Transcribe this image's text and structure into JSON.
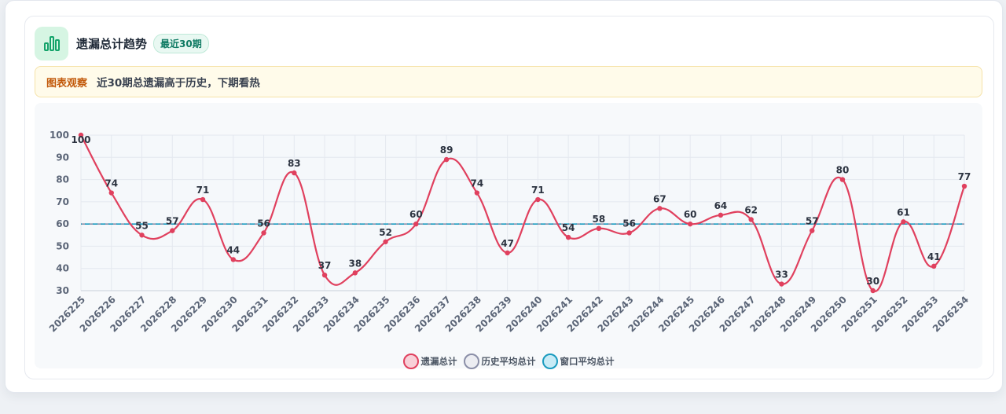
{
  "header": {
    "title": "遗漏总计趋势",
    "badge": "最近30期",
    "icon": "bar-chart-icon"
  },
  "insight": {
    "tag": "图表观察",
    "text": "近30期总遗漏高于历史，下期看热"
  },
  "colors": {
    "line": "#e0405e",
    "history_avg": "#8b8fa8",
    "window_avg": "#1a9bbf",
    "icon_bg": "#d6f5e3",
    "icon_fg": "#13a36a"
  },
  "chart_data": {
    "type": "line",
    "categories": [
      "2026225",
      "2026226",
      "2026227",
      "2026228",
      "2026229",
      "2026230",
      "2026231",
      "2026232",
      "2026233",
      "2026234",
      "2026235",
      "2026236",
      "2026237",
      "2026238",
      "2026239",
      "2026240",
      "2026241",
      "2026242",
      "2026243",
      "2026244",
      "2026245",
      "2026246",
      "2026247",
      "2026248",
      "2026249",
      "2026250",
      "2026251",
      "2026252",
      "2026253",
      "2026254"
    ],
    "series": [
      {
        "name": "遗漏总计",
        "values": [
          100,
          74,
          55,
          57,
          71,
          44,
          56,
          83,
          37,
          38,
          52,
          60,
          89,
          74,
          47,
          71,
          54,
          58,
          56,
          67,
          60,
          64,
          62,
          33,
          57,
          80,
          30,
          61,
          41,
          77
        ]
      },
      {
        "name": "历史平均总计",
        "values": [
          60,
          60,
          60,
          60,
          60,
          60,
          60,
          60,
          60,
          60,
          60,
          60,
          60,
          60,
          60,
          60,
          60,
          60,
          60,
          60,
          60,
          60,
          60,
          60,
          60,
          60,
          60,
          60,
          60,
          60
        ]
      },
      {
        "name": "窗口平均总计",
        "values": [
          60,
          60,
          60,
          60,
          60,
          60,
          60,
          60,
          60,
          60,
          60,
          60,
          60,
          60,
          60,
          60,
          60,
          60,
          60,
          60,
          60,
          60,
          60,
          60,
          60,
          60,
          60,
          60,
          60,
          60
        ]
      }
    ],
    "ylim": [
      30,
      100
    ],
    "yticks": [
      30,
      40,
      50,
      60,
      70,
      80,
      90,
      100
    ],
    "grid": true,
    "legend": "bottom",
    "data_labels": true
  }
}
